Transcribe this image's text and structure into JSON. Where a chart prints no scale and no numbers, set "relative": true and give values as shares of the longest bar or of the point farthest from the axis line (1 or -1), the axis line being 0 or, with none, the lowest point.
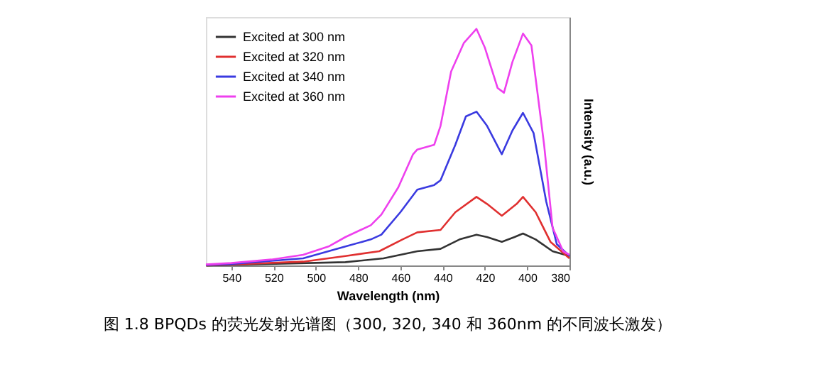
{
  "chart_data": {
    "type": "line",
    "xlabel": "Wavelength (nm)",
    "ylabel": "Intensity (a.u.)",
    "relative": true,
    "xlim": [
      552,
      380
    ],
    "xticks": [
      540,
      520,
      500,
      480,
      460,
      440,
      420,
      400,
      380
    ],
    "grid": false,
    "legend": "top left",
    "marker": "none",
    "line_style": "solid",
    "tick_labels": "x",
    "annotations": [
      "图 1.8 BPQDs 的荧光发射光谱图（300, 320, 340 和 360nm 的不同波长激发）"
    ],
    "series": [
      {
        "name": "Excited at 300 nm",
        "color": "#333333",
        "x": [
          552,
          486,
          468,
          452,
          441,
          432,
          424,
          419,
          412,
          406,
          402,
          396,
          388,
          380
        ],
        "values": [
          0,
          0.014,
          0.03,
          0.06,
          0.07,
          0.11,
          0.13,
          0.12,
          0.1,
          0.12,
          0.135,
          0.11,
          0.06,
          0.04
        ]
      },
      {
        "name": "Excited at 320 nm",
        "color": "#e03030",
        "x": [
          552,
          506,
          486,
          470,
          459,
          452,
          441,
          434,
          424,
          419,
          412,
          405,
          402,
          396,
          389,
          380
        ],
        "values": [
          0,
          0.016,
          0.04,
          0.06,
          0.11,
          0.14,
          0.15,
          0.225,
          0.29,
          0.26,
          0.21,
          0.26,
          0.29,
          0.225,
          0.1,
          0.03
        ]
      },
      {
        "name": "Excited at 340 nm",
        "color": "#3a3ae0",
        "x": [
          552,
          540,
          506,
          486,
          474,
          469,
          460,
          452,
          444,
          441,
          434,
          429,
          424,
          419,
          412,
          407,
          402,
          397,
          391,
          386,
          380
        ],
        "values": [
          0.002,
          0.006,
          0.03,
          0.08,
          0.11,
          0.13,
          0.225,
          0.32,
          0.34,
          0.36,
          0.51,
          0.63,
          0.65,
          0.59,
          0.47,
          0.57,
          0.645,
          0.56,
          0.27,
          0.09,
          0.04
        ]
      },
      {
        "name": "Excited at 360 nm",
        "color": "#ee40ee",
        "x": [
          552,
          540,
          521,
          506,
          494,
          486,
          474,
          469,
          461,
          454,
          452,
          444,
          441,
          436,
          430,
          424,
          420,
          414,
          411,
          407,
          402,
          398,
          392,
          388,
          383,
          380
        ],
        "values": [
          0.004,
          0.01,
          0.025,
          0.045,
          0.08,
          0.12,
          0.17,
          0.215,
          0.33,
          0.47,
          0.49,
          0.51,
          0.59,
          0.82,
          0.94,
          1.0,
          0.92,
          0.75,
          0.73,
          0.86,
          0.98,
          0.93,
          0.51,
          0.16,
          0.06,
          0.045
        ]
      }
    ]
  }
}
